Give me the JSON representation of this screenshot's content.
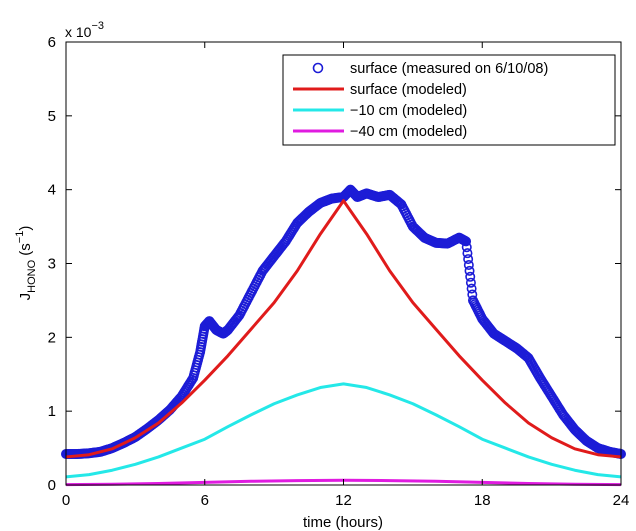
{
  "chart_data": {
    "type": "line",
    "title": "",
    "xlabel": "time (hours)",
    "ylabel_base": "J",
    "ylabel_sub": "HONO",
    "ylabel_unit_open": " (s",
    "ylabel_unit_sup": "−1",
    "ylabel_unit_close": ")",
    "y_multiplier_base": "x 10",
    "y_multiplier_exp": "−3",
    "xlim": [
      0,
      24
    ],
    "ylim": [
      0,
      6
    ],
    "xticks": [
      0,
      6,
      12,
      18,
      24
    ],
    "xtick_labels": [
      "0",
      "6",
      "12",
      "18",
      "24"
    ],
    "yticks": [
      0,
      1,
      2,
      3,
      4,
      5,
      6
    ],
    "ytick_labels": [
      "0",
      "1",
      "2",
      "3",
      "4",
      "5",
      "6"
    ],
    "grid": false,
    "legend_position": "top-right",
    "series": [
      {
        "name": "surface (measured on 6/10/08)",
        "style": "markers",
        "color": "#1c1cd6",
        "points": [
          [
            0.0,
            0.42
          ],
          [
            0.5,
            0.42
          ],
          [
            1.0,
            0.43
          ],
          [
            1.5,
            0.45
          ],
          [
            2.0,
            0.5
          ],
          [
            2.5,
            0.57
          ],
          [
            3.0,
            0.65
          ],
          [
            3.5,
            0.76
          ],
          [
            4.0,
            0.88
          ],
          [
            4.5,
            1.02
          ],
          [
            5.0,
            1.2
          ],
          [
            5.5,
            1.45
          ],
          [
            5.8,
            1.8
          ],
          [
            6.0,
            2.15
          ],
          [
            6.2,
            2.22
          ],
          [
            6.5,
            2.1
          ],
          [
            6.8,
            2.05
          ],
          [
            7.0,
            2.1
          ],
          [
            7.5,
            2.3
          ],
          [
            8.0,
            2.6
          ],
          [
            8.5,
            2.9
          ],
          [
            9.0,
            3.1
          ],
          [
            9.5,
            3.3
          ],
          [
            10.0,
            3.55
          ],
          [
            10.5,
            3.7
          ],
          [
            11.0,
            3.82
          ],
          [
            11.5,
            3.88
          ],
          [
            12.0,
            3.9
          ],
          [
            12.3,
            4.0
          ],
          [
            12.6,
            3.9
          ],
          [
            13.0,
            3.95
          ],
          [
            13.5,
            3.9
          ],
          [
            14.0,
            3.93
          ],
          [
            14.5,
            3.8
          ],
          [
            15.0,
            3.5
          ],
          [
            15.5,
            3.35
          ],
          [
            16.0,
            3.28
          ],
          [
            16.5,
            3.27
          ],
          [
            17.0,
            3.35
          ],
          [
            17.3,
            3.3
          ],
          [
            17.6,
            2.5
          ],
          [
            18.0,
            2.25
          ],
          [
            18.5,
            2.05
          ],
          [
            19.0,
            1.95
          ],
          [
            19.5,
            1.85
          ],
          [
            20.0,
            1.72
          ],
          [
            20.5,
            1.45
          ],
          [
            21.0,
            1.2
          ],
          [
            21.5,
            0.95
          ],
          [
            22.0,
            0.75
          ],
          [
            22.5,
            0.6
          ],
          [
            23.0,
            0.5
          ],
          [
            23.5,
            0.45
          ],
          [
            24.0,
            0.42
          ]
        ]
      },
      {
        "name": "surface (modeled)",
        "style": "line",
        "color": "#e01b1b",
        "x": [
          0,
          1,
          2,
          3,
          4,
          5,
          6,
          7,
          8,
          9,
          10,
          11,
          12,
          13,
          14,
          15,
          16,
          17,
          18,
          19,
          20,
          21,
          22,
          23,
          24
        ],
        "values": [
          0.38,
          0.41,
          0.49,
          0.64,
          0.84,
          1.11,
          1.42,
          1.75,
          2.11,
          2.47,
          2.9,
          3.4,
          3.85,
          3.4,
          2.9,
          2.47,
          2.11,
          1.75,
          1.42,
          1.11,
          0.84,
          0.64,
          0.49,
          0.41,
          0.38
        ]
      },
      {
        "name": "−10 cm (modeled)",
        "style": "line",
        "color": "#24e8e8",
        "x": [
          0,
          1,
          2,
          3,
          4,
          5,
          6,
          7,
          8,
          9,
          10,
          11,
          12,
          13,
          14,
          15,
          16,
          17,
          18,
          19,
          20,
          21,
          22,
          23,
          24
        ],
        "values": [
          0.11,
          0.14,
          0.2,
          0.28,
          0.38,
          0.5,
          0.62,
          0.79,
          0.95,
          1.1,
          1.22,
          1.32,
          1.37,
          1.32,
          1.22,
          1.1,
          0.95,
          0.79,
          0.62,
          0.5,
          0.38,
          0.28,
          0.2,
          0.14,
          0.11
        ]
      },
      {
        "name": "−40 cm (modeled)",
        "style": "line",
        "color": "#e01be0",
        "x": [
          0,
          2,
          4,
          6,
          8,
          10,
          12,
          14,
          16,
          18,
          20,
          22,
          24
        ],
        "values": [
          0.005,
          0.01,
          0.02,
          0.035,
          0.05,
          0.06,
          0.065,
          0.06,
          0.05,
          0.035,
          0.02,
          0.01,
          0.005
        ]
      }
    ]
  }
}
